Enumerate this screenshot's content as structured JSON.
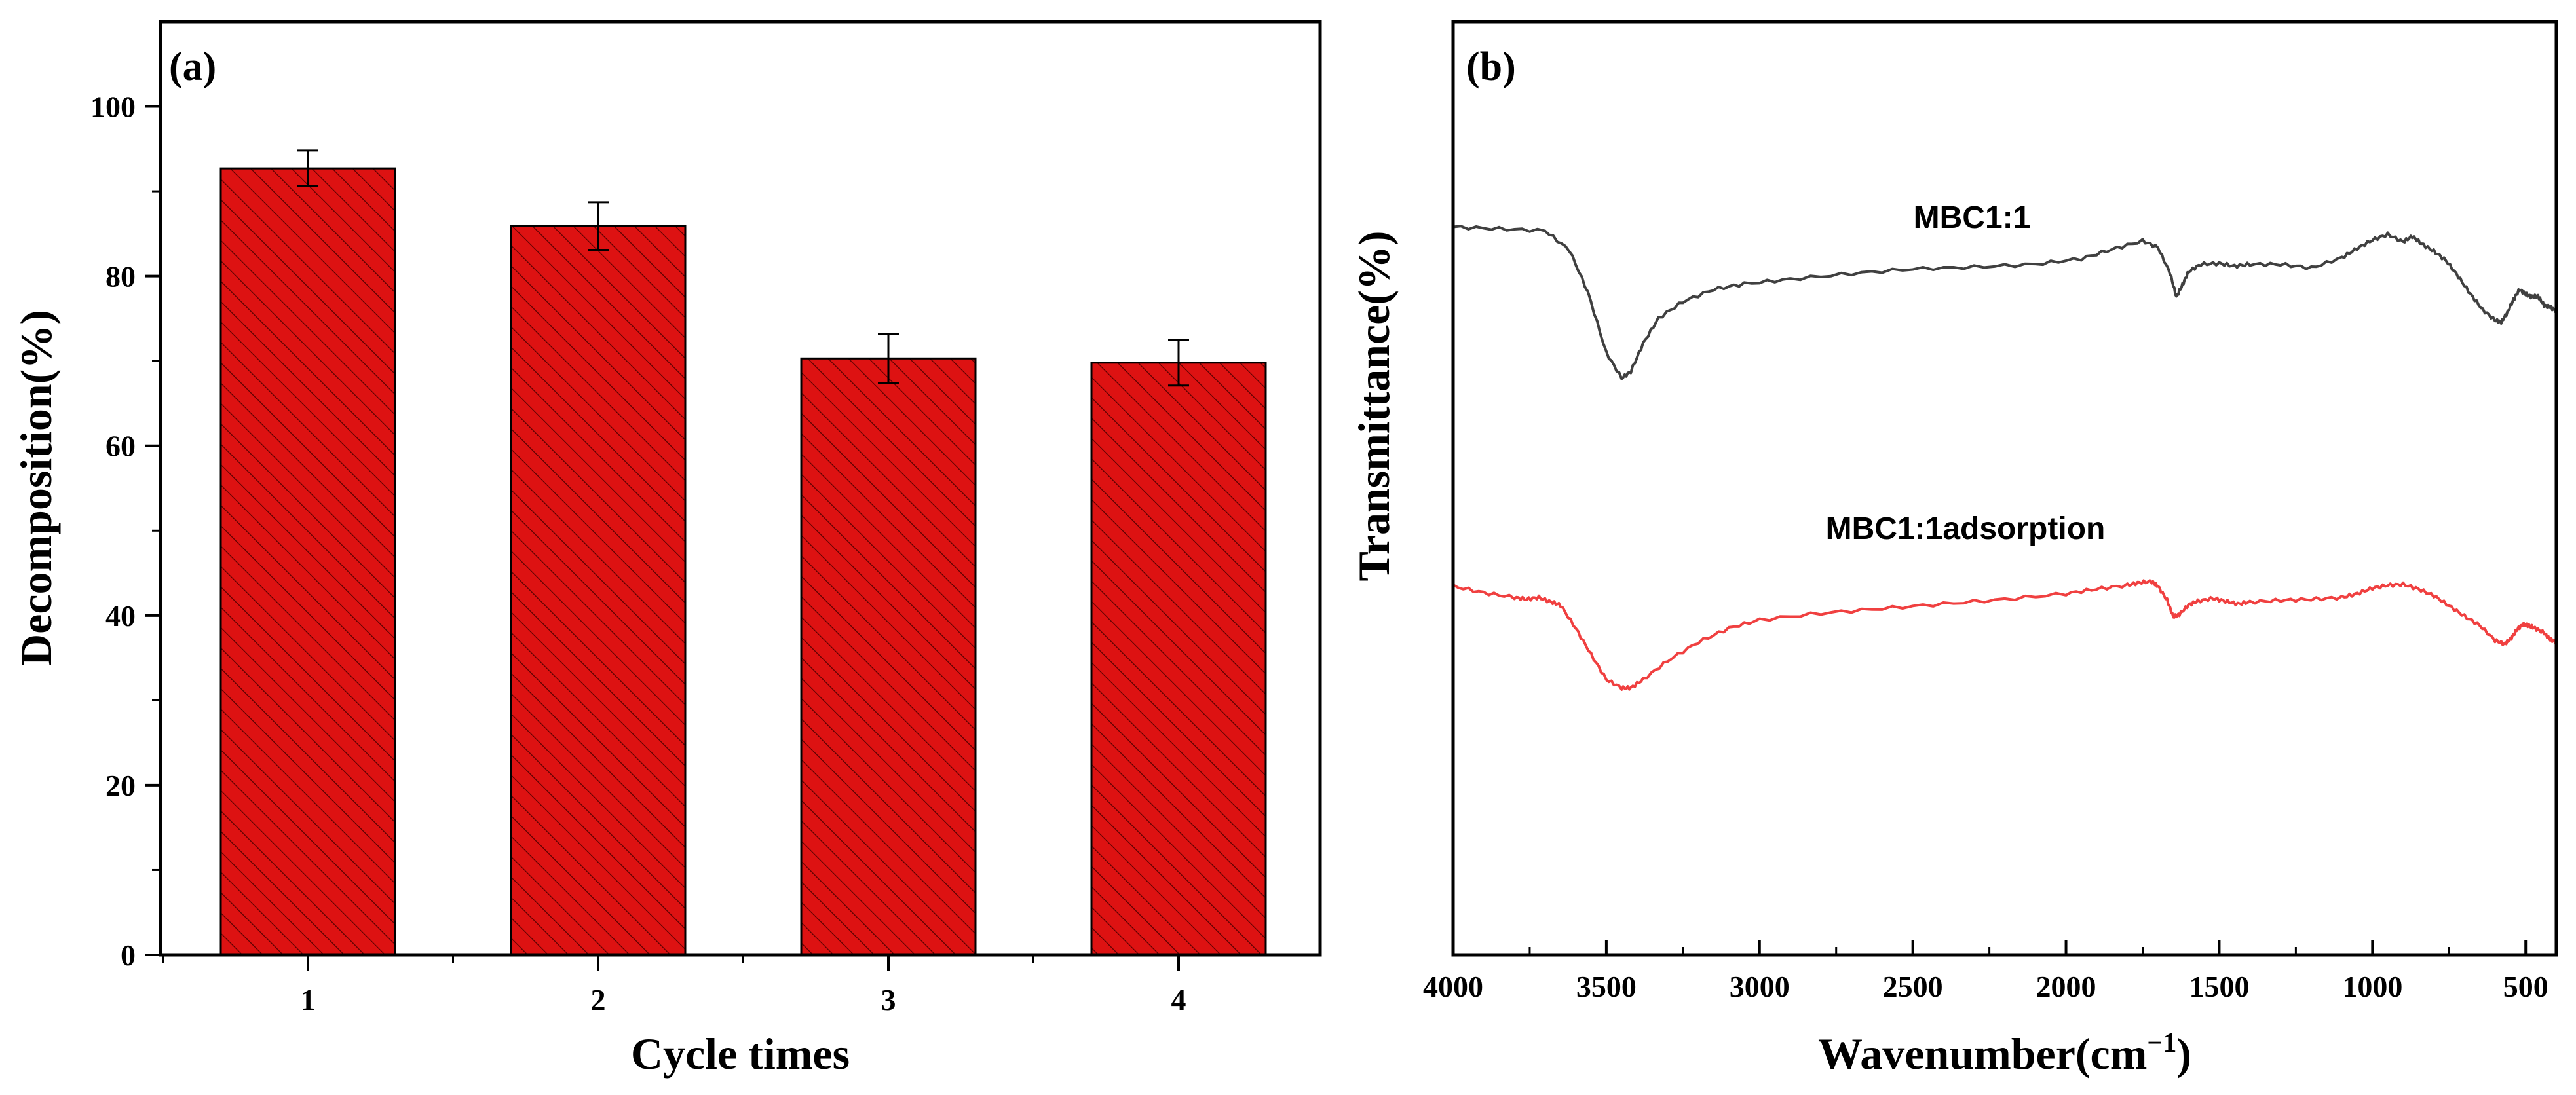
{
  "chart_data": [
    {
      "type": "bar",
      "panel_label": "(a)",
      "categories": [
        "1",
        "2",
        "3",
        "4"
      ],
      "values": [
        92.7,
        85.9,
        70.3,
        69.8
      ],
      "errors": [
        2.1,
        2.8,
        2.9,
        2.7
      ],
      "xlabel": "Cycle times",
      "ylabel": "Decomposition(%)",
      "ylim": [
        0,
        110
      ],
      "yticks": [
        "0",
        "20",
        "40",
        "60",
        "80",
        "100"
      ],
      "bar_color": "#dd1212",
      "hatch": "diagonal"
    },
    {
      "type": "line",
      "panel_label": "(b)",
      "xlabel_main": "Wavenumber(cm",
      "xlabel_sup": "−1",
      "xlabel_end": ")",
      "ylabel": "Transmittance(%)",
      "xlim": [
        4000,
        400
      ],
      "ylim": [
        0,
        100
      ],
      "xticks": [
        "4000",
        "3500",
        "3000",
        "2500",
        "2000",
        "1500",
        "1000",
        "500"
      ],
      "series": [
        {
          "name": "MBC1:1",
          "color": "#404040",
          "x": [
            4000,
            3850,
            3700,
            3620,
            3560,
            3500,
            3450,
            3420,
            3380,
            3330,
            3250,
            3150,
            3050,
            2900,
            2700,
            2500,
            2300,
            2100,
            1950,
            1850,
            1750,
            1700,
            1660,
            1640,
            1620,
            1600,
            1560,
            1500,
            1450,
            1400,
            1300,
            1200,
            1100,
            1050,
            1000,
            950,
            900,
            870,
            840,
            800,
            760,
            720,
            680,
            640,
            600,
            580,
            560,
            540,
            520,
            500,
            480,
            460,
            440,
            420,
            400
          ],
          "y": [
            78,
            77.8,
            77.6,
            75.5,
            71,
            64.5,
            61.8,
            62.5,
            65.5,
            68.2,
            70,
            71.3,
            71.9,
            72.4,
            73,
            73.5,
            73.7,
            74,
            74.6,
            75.6,
            76.5,
            75.8,
            73,
            70.5,
            71.8,
            73.2,
            74,
            74.1,
            73.8,
            74,
            74,
            73.6,
            74.7,
            75.7,
            76.6,
            77.2,
            76.4,
            77,
            76.2,
            75.4,
            74.4,
            72.7,
            70.8,
            69.1,
            68,
            67.8,
            68.8,
            70.2,
            71.3,
            70.8,
            70.5,
            70.6,
            69.6,
            69.4,
            69
          ]
        },
        {
          "name": "MBC1:1adsorption",
          "color": "#f04040",
          "x": [
            4000,
            3900,
            3800,
            3760,
            3720,
            3680,
            3650,
            3600,
            3550,
            3500,
            3450,
            3420,
            3380,
            3300,
            3200,
            3100,
            3000,
            2800,
            2600,
            2400,
            2200,
            2000,
            1900,
            1800,
            1760,
            1720,
            1700,
            1670,
            1650,
            1630,
            1600,
            1570,
            1520,
            1480,
            1440,
            1400,
            1300,
            1200,
            1100,
            1050,
            1000,
            950,
            900,
            850,
            800,
            750,
            700,
            650,
            600,
            570,
            550,
            530,
            510,
            490,
            470,
            440,
            420,
            400
          ],
          "y": [
            39.5,
            38.8,
            38.3,
            38.1,
            38.3,
            37.8,
            37.5,
            35,
            32.2,
            29.5,
            28.6,
            28.6,
            29.5,
            31.5,
            33.5,
            35,
            35.9,
            36.6,
            37.1,
            37.6,
            38.1,
            38.7,
            39.2,
            39.6,
            39.9,
            40,
            39.5,
            38,
            36.2,
            36.5,
            37.5,
            37.9,
            38.2,
            37.9,
            37.6,
            37.8,
            38,
            38.1,
            38.3,
            38.7,
            39.3,
            39.6,
            39.7,
            39.2,
            38.5,
            37.4,
            36.3,
            35.3,
            33.7,
            33.3,
            33.8,
            34.8,
            35.4,
            35.3,
            35,
            34.5,
            33.8,
            33.5
          ]
        }
      ]
    }
  ]
}
